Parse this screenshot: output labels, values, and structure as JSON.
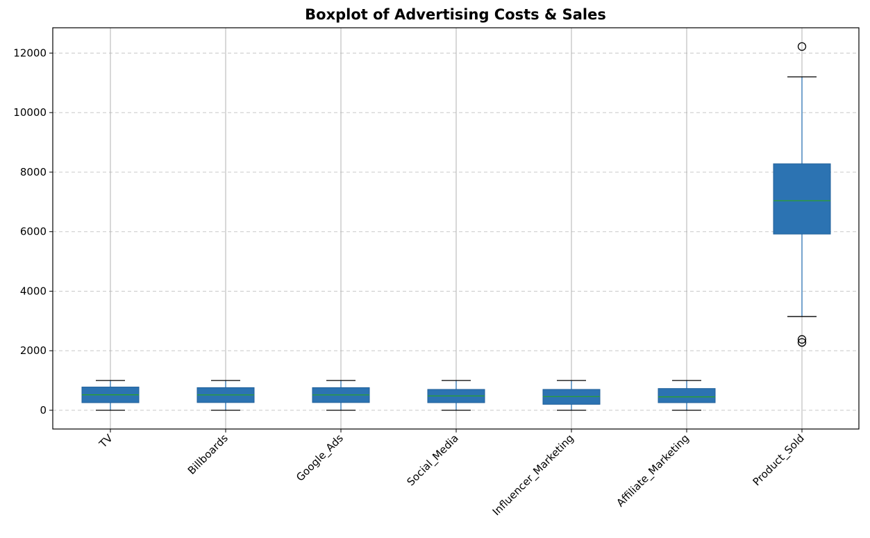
{
  "chart_data": {
    "type": "boxplot",
    "title": "Boxplot of Advertising Costs & Sales",
    "xlabel": "",
    "ylabel": "",
    "ylim": [
      -630,
      12850
    ],
    "yticks": [
      0,
      2000,
      4000,
      6000,
      8000,
      10000,
      12000
    ],
    "grid": {
      "x": true,
      "y": true,
      "y_style": "dashed"
    },
    "box_color": "#2c73b2",
    "median_color": "#2ca02c",
    "categories": [
      "TV",
      "Billboards",
      "Google_Ads",
      "Social_Media",
      "Influencer_Marketing",
      "Affiliate_Marketing",
      "Product_Sold"
    ],
    "boxes": [
      {
        "name": "TV",
        "whisker_low": 0,
        "q1": 255,
        "median": 520,
        "q3": 780,
        "whisker_high": 1000,
        "outliers": []
      },
      {
        "name": "Billboards",
        "whisker_low": 0,
        "q1": 260,
        "median": 515,
        "q3": 760,
        "whisker_high": 1000,
        "outliers": []
      },
      {
        "name": "Google_Ads",
        "whisker_low": 0,
        "q1": 260,
        "median": 515,
        "q3": 760,
        "whisker_high": 1000,
        "outliers": []
      },
      {
        "name": "Social_Media",
        "whisker_low": 0,
        "q1": 255,
        "median": 480,
        "q3": 700,
        "whisker_high": 1000,
        "outliers": []
      },
      {
        "name": "Influencer_Marketing",
        "whisker_low": 0,
        "q1": 200,
        "median": 460,
        "q3": 700,
        "whisker_high": 1000,
        "outliers": []
      },
      {
        "name": "Affiliate_Marketing",
        "whisker_low": 0,
        "q1": 255,
        "median": 450,
        "q3": 730,
        "whisker_high": 1000,
        "outliers": []
      },
      {
        "name": "Product_Sold",
        "whisker_low": 3150,
        "q1": 5920,
        "median": 7040,
        "q3": 8280,
        "whisker_high": 11200,
        "outliers": [
          12220,
          2380,
          2280
        ]
      }
    ]
  }
}
